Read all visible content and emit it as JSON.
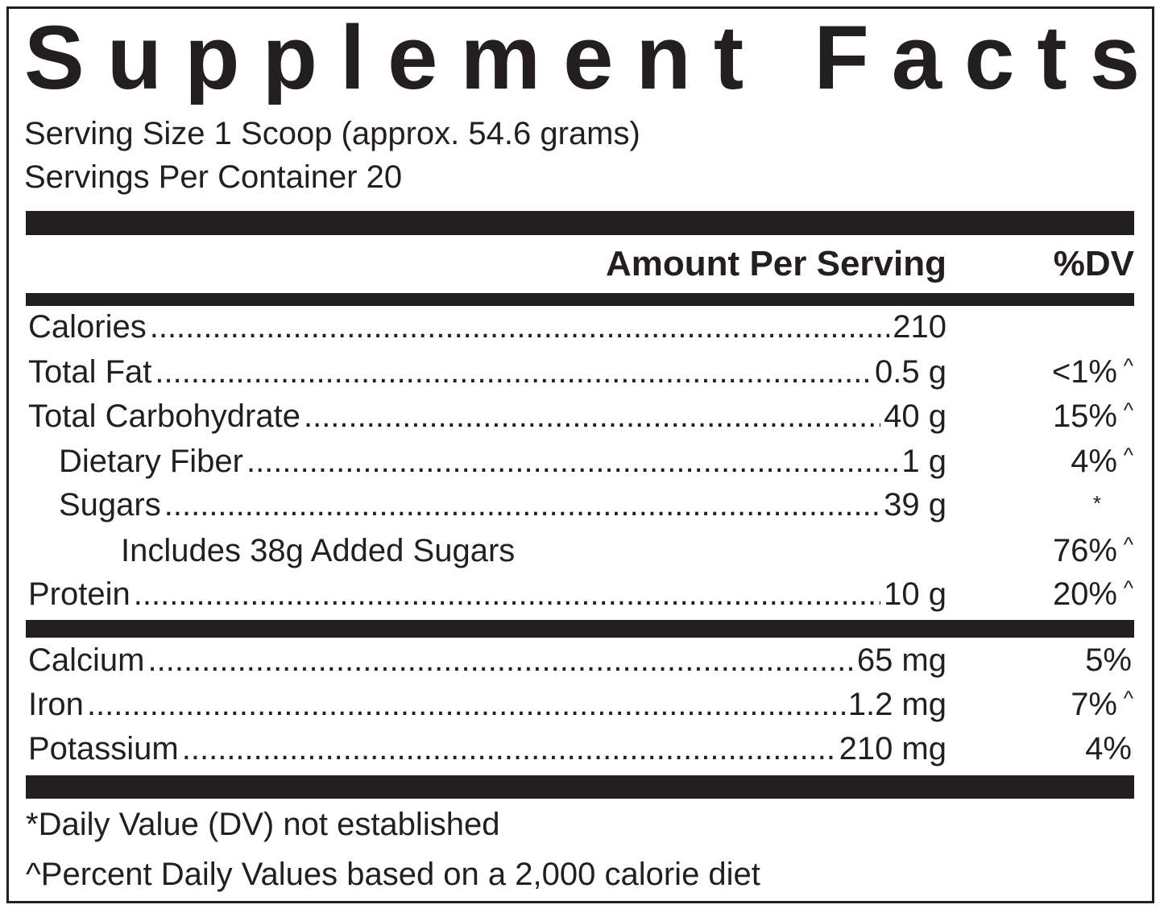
{
  "header": {
    "title": "Supplement Facts",
    "serving_size": "Serving Size 1 Scoop (approx. 54.6 grams)",
    "servings_per_container": "Servings Per Container 20"
  },
  "table": {
    "columns": [
      "Amount Per Serving",
      "%DV"
    ],
    "rows": [
      {
        "name": "Calories",
        "amount": "210"
      },
      {
        "name": "Total Fat",
        "amount": "0.5 g",
        "dv": "<1%",
        "dv_note": "^"
      },
      {
        "name": "Total Carbohydrate",
        "amount": "40 g",
        "dv": "15%",
        "dv_note": "^"
      },
      {
        "name": "Dietary Fiber",
        "amount": "1 g",
        "dv": "4%",
        "dv_note": "^"
      },
      {
        "name": "Sugars",
        "amount": "39 g",
        "dv_note": "*"
      },
      {
        "name": "Includes 38g Added Sugars",
        "dv": "76%",
        "dv_note": "^"
      },
      {
        "name": "Protein",
        "amount": "10 g",
        "dv": "20%",
        "dv_note": "^"
      },
      {
        "name": "Calcium",
        "amount": "65 mg",
        "dv": "5%"
      },
      {
        "name": "Iron",
        "amount": "1.2 mg",
        "dv": "7%",
        "dv_note": "^"
      },
      {
        "name": "Potassium",
        "amount": "210 mg",
        "dv": "4%"
      }
    ]
  },
  "footnotes": [
    "*Daily Value (DV) not established",
    "^Percent Daily Values based on a 2,000 calorie diet"
  ]
}
